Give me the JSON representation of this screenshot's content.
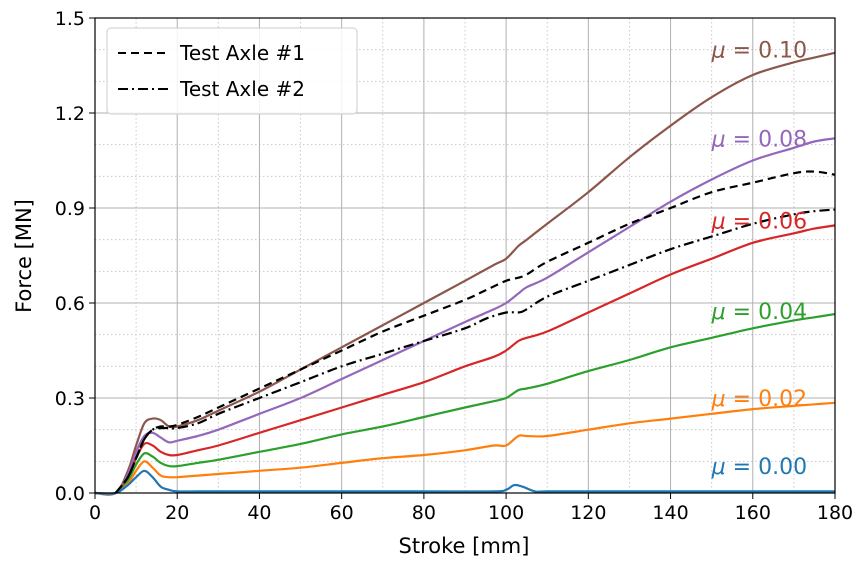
{
  "chart_data": {
    "type": "line",
    "title": "",
    "xlabel": "Stroke [mm]",
    "ylabel": "Force [MN]",
    "xlim": [
      0,
      180
    ],
    "ylim": [
      0,
      1.5
    ],
    "xticks": [
      0,
      20,
      40,
      60,
      80,
      100,
      120,
      140,
      160,
      180
    ],
    "xtick_labels": [
      "0",
      "20",
      "40",
      "60",
      "80",
      "100",
      "120",
      "140",
      "160",
      "180"
    ],
    "yticks": [
      0,
      0.3,
      0.6,
      0.9,
      1.2,
      1.5
    ],
    "ytick_labels": [
      "0.0",
      "0.3",
      "0.6",
      "0.9",
      "1.2",
      "1.5"
    ],
    "x_minor_step": 10,
    "y_minor_step": 0.1,
    "grid": true,
    "legend": {
      "position": "top-left",
      "entries": [
        {
          "label": "Test Axle #1",
          "style": "dashed",
          "color": "#000000"
        },
        {
          "label": "Test Axle #2",
          "style": "dashdot",
          "color": "#000000"
        }
      ]
    },
    "series": [
      {
        "name": "Test Axle #1",
        "color": "#000000",
        "style": "dashed",
        "x": [
          5,
          8,
          10,
          12,
          14,
          16,
          18,
          20,
          25,
          30,
          40,
          50,
          60,
          70,
          80,
          90,
          95,
          100,
          103,
          105,
          110,
          120,
          130,
          140,
          150,
          160,
          170,
          175,
          180
        ],
        "y": [
          0.0,
          0.05,
          0.11,
          0.17,
          0.2,
          0.21,
          0.21,
          0.215,
          0.24,
          0.27,
          0.33,
          0.39,
          0.45,
          0.51,
          0.56,
          0.61,
          0.64,
          0.67,
          0.68,
          0.69,
          0.73,
          0.79,
          0.85,
          0.9,
          0.95,
          0.98,
          1.01,
          1.015,
          1.005
        ]
      },
      {
        "name": "Test Axle #2",
        "color": "#000000",
        "style": "dashdot",
        "x": [
          5,
          8,
          10,
          12,
          14,
          16,
          18,
          20,
          25,
          30,
          40,
          50,
          60,
          70,
          80,
          90,
          95,
          100,
          103,
          105,
          110,
          120,
          130,
          140,
          150,
          160,
          170,
          175,
          180
        ],
        "y": [
          0.0,
          0.05,
          0.11,
          0.17,
          0.2,
          0.205,
          0.205,
          0.205,
          0.22,
          0.25,
          0.3,
          0.35,
          0.4,
          0.44,
          0.48,
          0.52,
          0.55,
          0.57,
          0.57,
          0.58,
          0.62,
          0.67,
          0.72,
          0.77,
          0.81,
          0.85,
          0.88,
          0.89,
          0.895
        ]
      },
      {
        "name": "",
        "color": "#8c564b",
        "style": "solid",
        "x": [
          0,
          5,
          8,
          10,
          12,
          14,
          16,
          18,
          20,
          25,
          30,
          40,
          50,
          60,
          70,
          80,
          90,
          97,
          100,
          103,
          105,
          110,
          120,
          130,
          140,
          150,
          160,
          170,
          175,
          180
        ],
        "y": [
          0,
          0.0,
          0.07,
          0.15,
          0.22,
          0.235,
          0.23,
          0.21,
          0.21,
          0.23,
          0.26,
          0.32,
          0.39,
          0.46,
          0.53,
          0.6,
          0.67,
          0.72,
          0.74,
          0.78,
          0.8,
          0.85,
          0.95,
          1.06,
          1.16,
          1.25,
          1.32,
          1.36,
          1.375,
          1.39
        ]
      },
      {
        "name": "",
        "color": "#9467bd",
        "style": "solid",
        "x": [
          0,
          5,
          8,
          10,
          12,
          14,
          16,
          18,
          20,
          25,
          30,
          40,
          50,
          60,
          70,
          80,
          90,
          97,
          100,
          103,
          105,
          110,
          120,
          130,
          140,
          150,
          160,
          170,
          175,
          180
        ],
        "y": [
          0,
          0.0,
          0.06,
          0.13,
          0.18,
          0.19,
          0.175,
          0.16,
          0.165,
          0.18,
          0.2,
          0.25,
          0.3,
          0.36,
          0.42,
          0.48,
          0.54,
          0.58,
          0.6,
          0.63,
          0.65,
          0.68,
          0.76,
          0.84,
          0.92,
          0.99,
          1.05,
          1.09,
          1.11,
          1.12
        ]
      },
      {
        "name": "",
        "color": "#d62728",
        "style": "solid",
        "x": [
          0,
          5,
          8,
          10,
          12,
          14,
          16,
          18,
          20,
          25,
          30,
          40,
          50,
          60,
          70,
          80,
          90,
          97,
          100,
          103,
          105,
          110,
          120,
          130,
          140,
          150,
          160,
          170,
          175,
          180
        ],
        "y": [
          0,
          0.0,
          0.05,
          0.11,
          0.155,
          0.15,
          0.13,
          0.12,
          0.12,
          0.135,
          0.15,
          0.19,
          0.23,
          0.27,
          0.31,
          0.35,
          0.4,
          0.43,
          0.45,
          0.48,
          0.49,
          0.51,
          0.57,
          0.63,
          0.69,
          0.74,
          0.79,
          0.82,
          0.835,
          0.845
        ]
      },
      {
        "name": "",
        "color": "#2ca02c",
        "style": "solid",
        "x": [
          0,
          5,
          8,
          10,
          12,
          14,
          16,
          18,
          20,
          25,
          30,
          40,
          50,
          60,
          70,
          80,
          90,
          97,
          100,
          103,
          105,
          110,
          120,
          130,
          140,
          150,
          160,
          170,
          175,
          180
        ],
        "y": [
          0,
          0.0,
          0.04,
          0.09,
          0.125,
          0.115,
          0.095,
          0.085,
          0.085,
          0.095,
          0.105,
          0.13,
          0.155,
          0.185,
          0.21,
          0.24,
          0.27,
          0.29,
          0.3,
          0.325,
          0.33,
          0.345,
          0.385,
          0.42,
          0.46,
          0.49,
          0.52,
          0.545,
          0.555,
          0.565
        ]
      },
      {
        "name": "",
        "color": "#ff7f0e",
        "style": "solid",
        "x": [
          0,
          5,
          8,
          10,
          12,
          14,
          16,
          18,
          20,
          25,
          30,
          40,
          50,
          60,
          70,
          80,
          90,
          97,
          100,
          103,
          105,
          110,
          120,
          130,
          140,
          150,
          160,
          170,
          175,
          180
        ],
        "y": [
          0,
          0.0,
          0.03,
          0.07,
          0.1,
          0.08,
          0.055,
          0.05,
          0.05,
          0.055,
          0.06,
          0.07,
          0.08,
          0.095,
          0.11,
          0.12,
          0.135,
          0.15,
          0.15,
          0.18,
          0.18,
          0.18,
          0.2,
          0.22,
          0.235,
          0.25,
          0.265,
          0.275,
          0.28,
          0.285
        ]
      },
      {
        "name": "",
        "color": "#1f77b4",
        "style": "solid",
        "x": [
          0,
          5,
          8,
          10,
          12,
          14,
          16,
          18,
          20,
          25,
          30,
          40,
          60,
          80,
          97,
          100,
          102,
          104,
          107,
          110,
          120,
          140,
          160,
          180
        ],
        "y": [
          0,
          0.0,
          0.025,
          0.05,
          0.07,
          0.05,
          0.02,
          0.01,
          0.005,
          0.005,
          0.005,
          0.005,
          0.005,
          0.005,
          0.005,
          0.01,
          0.025,
          0.02,
          0.005,
          0.005,
          0.005,
          0.005,
          0.005,
          0.005
        ]
      }
    ],
    "annotations": [
      {
        "mu": "μ",
        "text": " = 0.10",
        "x": 150,
        "y": 1.4,
        "color": "#8c564b"
      },
      {
        "mu": "μ",
        "text": " = 0.08",
        "x": 150,
        "y": 1.12,
        "color": "#9467bd"
      },
      {
        "mu": "μ",
        "text": " = 0.06",
        "x": 150,
        "y": 0.86,
        "color": "#d62728"
      },
      {
        "mu": "μ",
        "text": " = 0.04",
        "x": 150,
        "y": 0.575,
        "color": "#2ca02c"
      },
      {
        "mu": "μ",
        "text": " = 0.02",
        "x": 150,
        "y": 0.3,
        "color": "#ff7f0e"
      },
      {
        "mu": "μ",
        "text": " = 0.00",
        "x": 150,
        "y": 0.085,
        "color": "#1f77b4"
      }
    ]
  }
}
